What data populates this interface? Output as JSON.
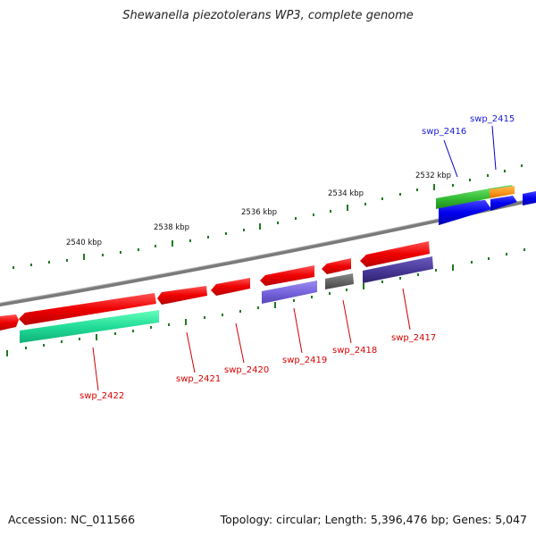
{
  "header": {
    "title": "Shewanella piezotolerans WP3, complete genome"
  },
  "footer": {
    "accession": "Accession: NC_011566",
    "summary": "Topology: circular; Length: 5,396,476 bp; Genes: 5,047"
  },
  "ruler": {
    "labels": [
      "2540 kbp",
      "2538 kbp",
      "2536 kbp",
      "2534 kbp",
      "2532 kbp"
    ]
  },
  "genes": [
    {
      "name": "swp_2422",
      "color": "#d80000"
    },
    {
      "name": "swp_2421",
      "color": "#d80000"
    },
    {
      "name": "swp_2420",
      "color": "#d80000"
    },
    {
      "name": "swp_2419",
      "color": "#d80000"
    },
    {
      "name": "swp_2418",
      "color": "#d80000"
    },
    {
      "name": "swp_2417",
      "color": "#d80000"
    },
    {
      "name": "swp_2416",
      "color": "#1a1ad8"
    },
    {
      "name": "swp_2415",
      "color": "#1a1ad8"
    }
  ],
  "colors": {
    "backbone": "#7a7a7a",
    "tick": "#1f7a1f",
    "cds_reverse": "#ee1111",
    "cds_forward": "#1111ee",
    "feature_teal": "#22dd99",
    "feature_lavender": "#7766dd",
    "feature_indigo": "#4a3a99",
    "feature_gray": "#666666",
    "feature_green": "#33bb33",
    "feature_orange": "#ff9922"
  }
}
